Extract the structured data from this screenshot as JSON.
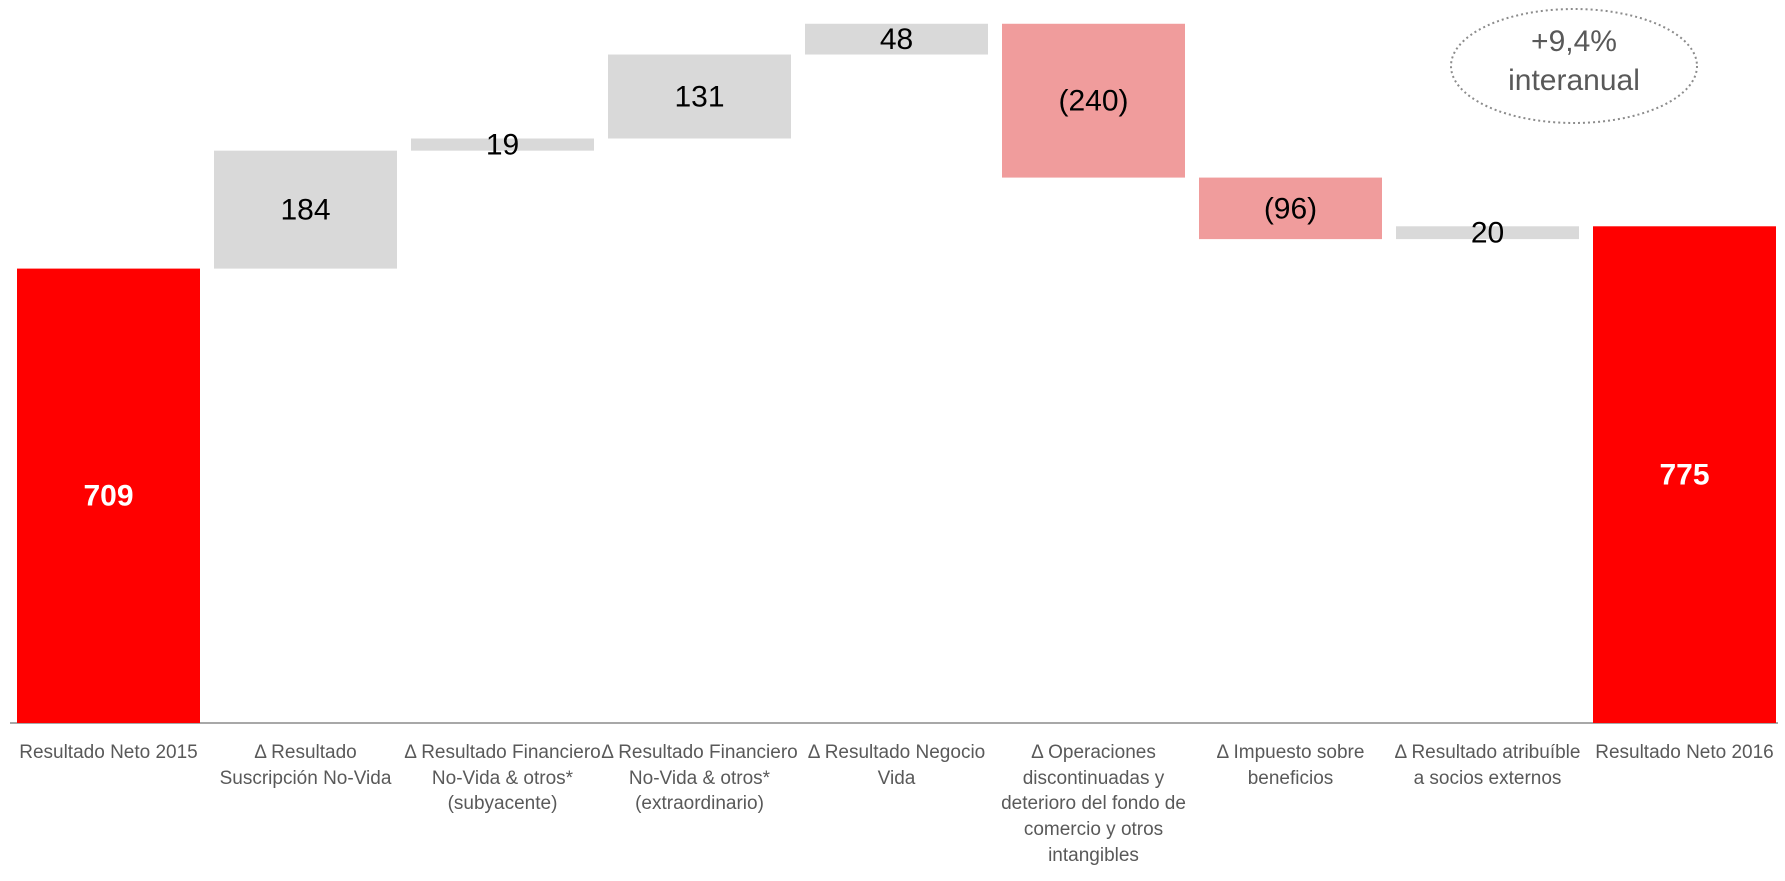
{
  "chart_data": {
    "type": "waterfall",
    "categories": [
      "Resultado Neto 2015",
      "Δ Resultado Suscripción No-Vida",
      "Δ Resultado Financiero No-Vida & otros* (subyacente)",
      "Δ Resultado Financiero No-Vida & otros* (extraordinario)",
      "Δ Resultado Negocio Vida",
      "Δ Operaciones discontinuadas y deterioro del fondo de comercio y otros intangibles",
      "Δ Impuesto sobre beneficios",
      "Δ Resultado atribuíble a socios externos",
      "Resultado Neto 2016"
    ],
    "values": [
      709,
      184,
      19,
      131,
      48,
      -240,
      -96,
      20,
      775
    ],
    "value_labels": [
      "709",
      "184",
      "19",
      "131",
      "48",
      "(240)",
      "(96)",
      "20",
      "775"
    ],
    "measure": [
      "absolute",
      "relative",
      "relative",
      "relative",
      "relative",
      "relative",
      "relative",
      "relative",
      "total"
    ],
    "colors": {
      "total": "#ff0000",
      "increase": "#d9d9d9",
      "decrease": "#f09c9c"
    },
    "ylim": [
      0,
      1100
    ],
    "annotation": "+9,4% interanual"
  }
}
